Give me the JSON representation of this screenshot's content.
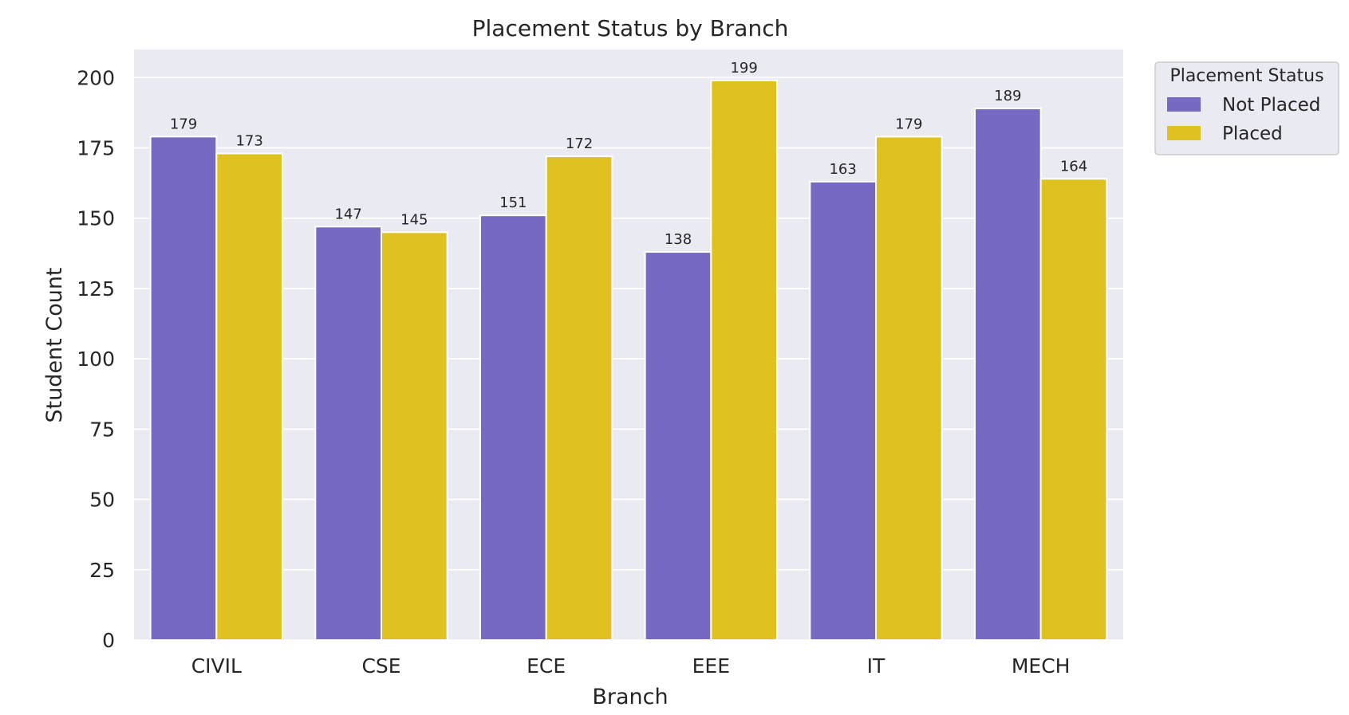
{
  "chart_data": {
    "type": "bar",
    "title": "Placement Status by Branch",
    "xlabel": "Branch",
    "ylabel": "Student Count",
    "categories": [
      "CIVIL",
      "CSE",
      "ECE",
      "EEE",
      "IT",
      "MECH"
    ],
    "series": [
      {
        "name": "Not Placed",
        "values": [
          179,
          147,
          151,
          138,
          163,
          189
        ],
        "color": "#7569c1"
      },
      {
        "name": "Placed",
        "values": [
          173,
          145,
          172,
          199,
          179,
          164
        ],
        "color": "#dfc21f"
      }
    ],
    "ylim": [
      0,
      210
    ],
    "yticks": [
      0,
      25,
      50,
      75,
      100,
      125,
      150,
      175,
      200
    ],
    "grid": true,
    "legend": {
      "title": "Placement Status",
      "position": "upper-right-outside"
    },
    "colors": {
      "plot_background": "#eaeaf2",
      "grid": "#ffffff",
      "text": "#262626"
    }
  }
}
